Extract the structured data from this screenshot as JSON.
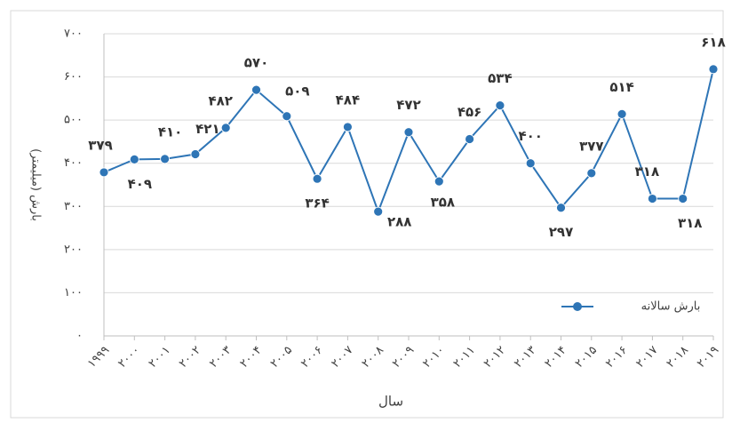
{
  "chart_data": {
    "type": "line",
    "x_label": "سال",
    "y_label": "بارش (میلیمتر)",
    "categories": [
      "۱۹۹۹",
      "۲۰۰۰",
      "۲۰۰۱",
      "۲۰۰۲",
      "۲۰۰۳",
      "۲۰۰۴",
      "۲۰۰۵",
      "۲۰۰۶",
      "۲۰۰۷",
      "۲۰۰۸",
      "۲۰۰۹",
      "۲۰۱۰",
      "۲۰۱۱",
      "۲۰۱۲",
      "۲۰۱۳",
      "۲۰۱۴",
      "۲۰۱۵",
      "۲۰۱۶",
      "۲۰۱۷",
      "۲۰۱۸",
      "۲۰۱۹"
    ],
    "series": [
      {
        "name": "بارش سالانه",
        "color": "#2e75b6",
        "values": [
          379,
          409,
          410,
          421,
          482,
          570,
          509,
          364,
          484,
          288,
          472,
          358,
          456,
          534,
          400,
          297,
          377,
          514,
          318,
          318,
          618
        ],
        "value_labels": [
          "۳۷۹",
          "۴۰۹",
          "۴۱۰",
          "۴۲۱",
          "۴۸۲",
          "۵۷۰",
          "۵۰۹",
          "۳۶۴",
          "۴۸۴",
          "۲۸۸",
          "۴۷۲",
          "۳۵۸",
          "۴۵۶",
          "۵۳۴",
          "۴۰۰",
          "۲۹۷",
          "۳۷۷",
          "۵۱۴",
          "۳۱۸",
          "۳۱۸",
          "۶۱۸"
        ]
      }
    ],
    "ylim": [
      0,
      700
    ],
    "yticks": [
      {
        "value": 0,
        "label": "۰"
      },
      {
        "value": 100,
        "label": "۱۰۰"
      },
      {
        "value": 200,
        "label": "۲۰۰"
      },
      {
        "value": 300,
        "label": "۳۰۰"
      },
      {
        "value": 400,
        "label": "۴۰۰"
      },
      {
        "value": 500,
        "label": "۵۰۰"
      },
      {
        "value": 600,
        "label": "۶۰۰"
      },
      {
        "value": 700,
        "label": "۷۰۰"
      }
    ],
    "grid": true
  }
}
